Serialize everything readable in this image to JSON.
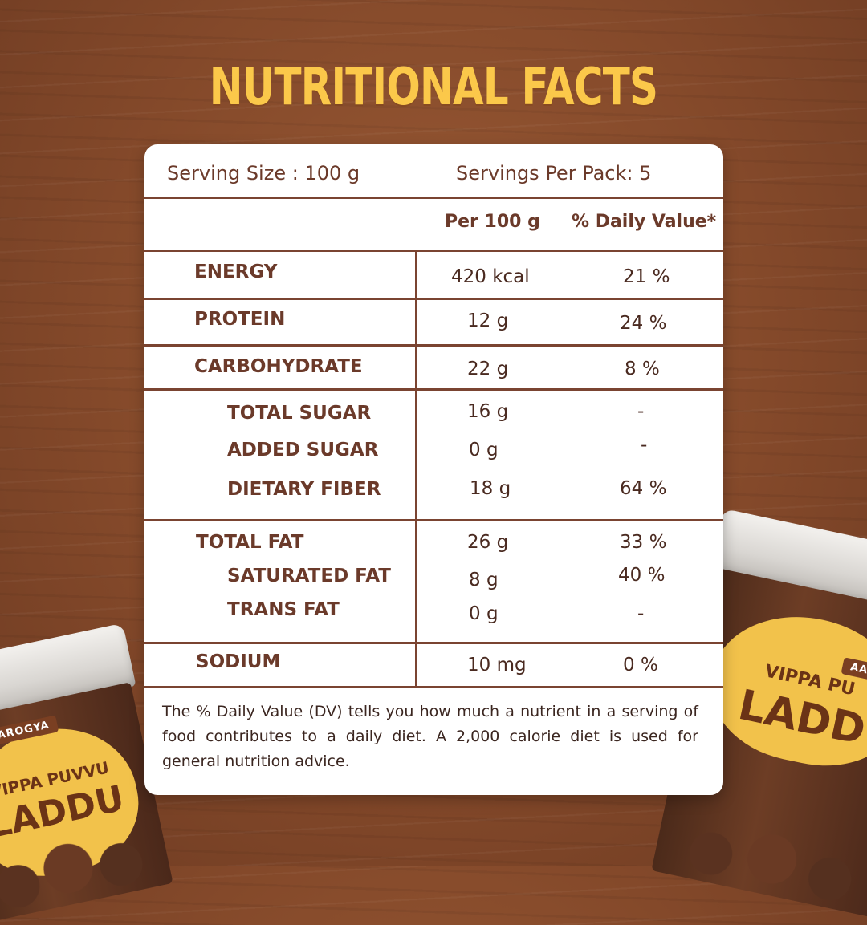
{
  "title": "NUTRITIONAL FACTS",
  "card": {
    "serving_size": "Serving Size : 100 g",
    "servings_per_pack": "Servings Per Pack: 5",
    "col_per": "Per 100 g",
    "col_dv": "% Daily Value*",
    "rows": [
      {
        "name": "ENERGY",
        "value": "420 kcal",
        "dv": "21 %"
      },
      {
        "name": "PROTEIN",
        "value": "12 g",
        "dv": "24 %"
      },
      {
        "name": "CARBOHYDRATE",
        "value": "22 g",
        "dv": "8 %"
      },
      {
        "name": "TOTAL SUGAR",
        "value": "16 g",
        "dv": "-"
      },
      {
        "name": "ADDED SUGAR",
        "value": "0 g",
        "dv": "-"
      },
      {
        "name": "DIETARY FIBER",
        "value": "18 g",
        "dv": "64 %"
      },
      {
        "name": "TOTAL FAT",
        "value": "26 g",
        "dv": "33 %"
      },
      {
        "name": "SATURATED FAT",
        "value": "8 g",
        "dv": "40 %"
      },
      {
        "name": "TRANS FAT",
        "value": "0 g",
        "dv": "-"
      },
      {
        "name": "SODIUM",
        "value": "10 mg",
        "dv": "0 %"
      }
    ],
    "footnote": "The % Daily Value (DV) tells you how much a nutrient in a serving of food contributes to a daily diet. A 2,000 calorie diet is used for general nutrition advice."
  },
  "jars": {
    "left": {
      "brand": "AAROGYA",
      "line1": "VIPPA PUVVU",
      "line2": "LADDU"
    },
    "right": {
      "brand": "AAR",
      "line1": "VIPPA PU",
      "line2": "LADD"
    }
  },
  "colors": {
    "title": "#fbc84a",
    "text": "#6b3a2a",
    "rule": "#7a4431",
    "background": "#84492a"
  }
}
